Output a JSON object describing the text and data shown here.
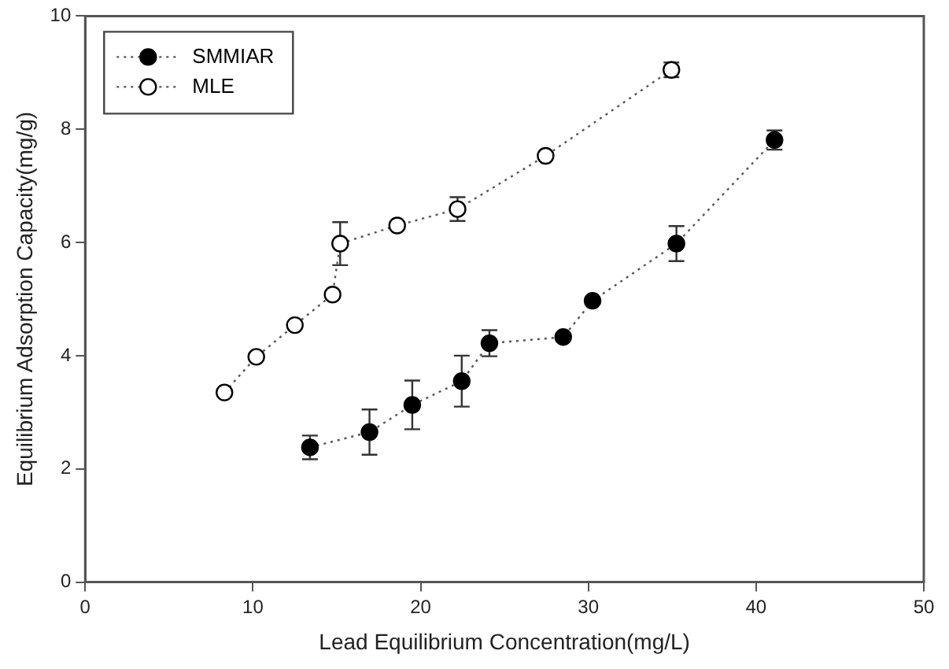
{
  "chart_data": {
    "type": "line",
    "xlabel": "Lead Equilibrium Concentration(mg/L)",
    "ylabel": "Equilibrium Adsorption Capacity(mg/g)",
    "xlim": [
      0,
      50
    ],
    "xticks": [
      0,
      10,
      20,
      30,
      40,
      50
    ],
    "ylim": [
      0,
      10
    ],
    "yticks": [
      0,
      2,
      4,
      6,
      8,
      10
    ],
    "grid": false,
    "legend": "top left",
    "marker": "circle",
    "line_style": "dotted",
    "series": [
      {
        "name": "SMMIAR",
        "color": "#000000",
        "x": [
          13.4,
          16.95,
          19.5,
          22.45,
          24.1,
          28.5,
          30.25,
          35.25,
          41.1
        ],
        "values": [
          2.38,
          2.65,
          3.13,
          3.55,
          4.22,
          4.33,
          4.97,
          5.98,
          7.81
        ],
        "errors": [
          0.21,
          0.4,
          0.43,
          0.45,
          0.23,
          null,
          null,
          0.31,
          0.17
        ]
      },
      {
        "name": "MLE",
        "color": "#ffffff",
        "x": [
          8.3,
          10.2,
          12.5,
          14.75,
          15.2,
          18.6,
          22.2,
          27.45,
          34.95
        ],
        "values": [
          3.35,
          3.98,
          4.54,
          5.08,
          5.98,
          6.3,
          6.59,
          7.53,
          9.05
        ],
        "errors": [
          null,
          null,
          null,
          null,
          0.38,
          null,
          0.21,
          null,
          0.13
        ]
      }
    ]
  }
}
